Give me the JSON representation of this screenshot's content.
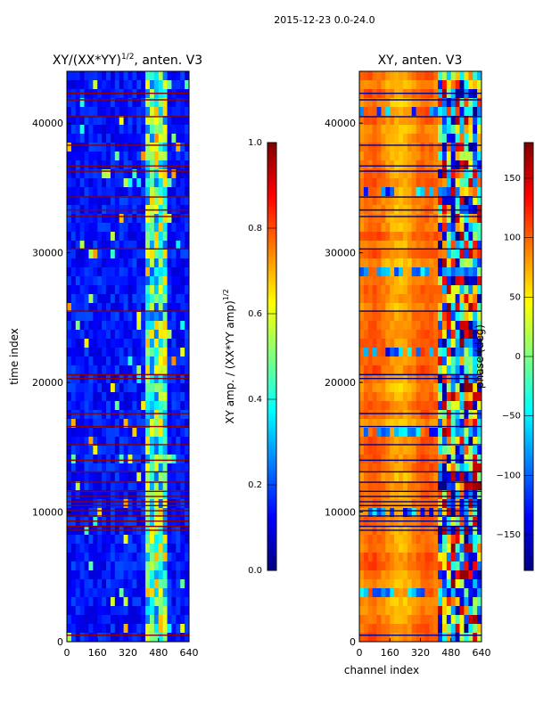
{
  "figure": {
    "suptitle": "2015-12-23 0.0-24.0",
    "colors": {
      "jet": [
        "#00007f",
        "#0000ff",
        "#007fff",
        "#00ffff",
        "#7fff7f",
        "#ffff00",
        "#ff7f00",
        "#ff0000",
        "#7f0000"
      ],
      "flag_line": "#8b0000",
      "axis": "#000000",
      "background": "#ffffff"
    }
  },
  "chart_data": [
    {
      "type": "heatmap",
      "title_main": "XY/(XX*YY)",
      "title_sup": "1/2",
      "title_rest": ", anten. V3",
      "ylabel": "time index",
      "xlabel": "",
      "xlim": [
        0,
        640
      ],
      "ylim": [
        0,
        44000
      ],
      "xticks": [
        0,
        160,
        320,
        480,
        640
      ],
      "xtick_labels": [
        "0",
        "160",
        "320",
        "480",
        "640"
      ],
      "yticks": [
        0,
        10000,
        20000,
        30000,
        40000
      ],
      "ytick_labels": [
        "0",
        "10000",
        "20000",
        "30000",
        "40000"
      ],
      "colorbar": {
        "label_main": "XY amp. / (XX*YY amp)",
        "label_sup": "1/2",
        "range": [
          0.0,
          1.0
        ],
        "ticks": [
          0.0,
          0.2,
          0.4,
          0.6,
          0.8,
          1.0
        ],
        "tick_labels": [
          "0.0",
          "0.2",
          "0.4",
          "0.6",
          "0.8",
          "1.0"
        ]
      },
      "flagged_time_rows": [
        500,
        8600,
        8900,
        9300,
        9700,
        10100,
        10500,
        10800,
        11200,
        11600,
        12300,
        13100,
        14000,
        15200,
        16600,
        17600,
        20300,
        20600,
        25500,
        30300,
        32800,
        33300,
        34300,
        36300,
        36700,
        38300,
        40500,
        41800,
        42300
      ],
      "bright_channel_range": [
        410,
        520
      ]
    },
    {
      "type": "heatmap",
      "title": "XY, anten. V3",
      "xlabel": "channel index",
      "ylabel": "",
      "xlim": [
        0,
        640
      ],
      "ylim": [
        0,
        44000
      ],
      "xticks": [
        0,
        160,
        320,
        480,
        640
      ],
      "xtick_labels": [
        "0",
        "160",
        "320",
        "480",
        "640"
      ],
      "yticks": [
        0,
        10000,
        20000,
        30000,
        40000
      ],
      "ytick_labels": [
        "0",
        "10000",
        "20000",
        "30000",
        "40000"
      ],
      "colorbar": {
        "label": "phase (deg)",
        "range": [
          -180,
          180
        ],
        "ticks": [
          -150,
          -100,
          -50,
          0,
          50,
          100,
          150
        ],
        "tick_labels": [
          "−150",
          "−100",
          "−50",
          "0",
          "50",
          "100",
          "150"
        ]
      },
      "flagged_time_rows": [
        500,
        8600,
        8900,
        9300,
        9700,
        10100,
        10500,
        10800,
        11200,
        11600,
        12300,
        13100,
        14000,
        15200,
        16600,
        17600,
        20300,
        20600,
        25500,
        30300,
        32800,
        33300,
        34300,
        36300,
        36700,
        38300,
        40500,
        41800,
        42300
      ],
      "noisy_channel_range": [
        400,
        640
      ]
    }
  ]
}
